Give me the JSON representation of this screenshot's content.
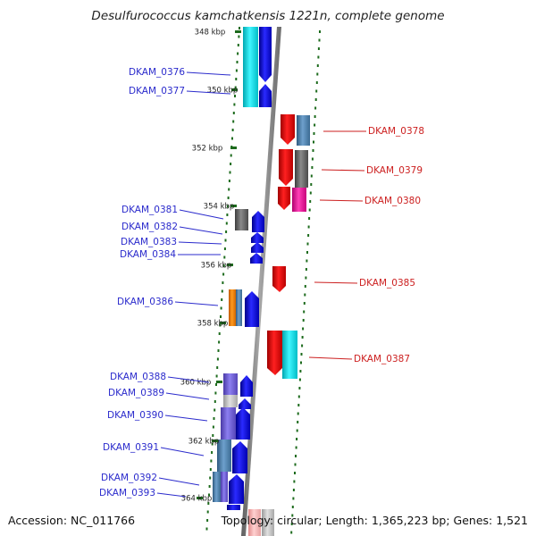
{
  "title": "Desulfurococcus kamchatkensis 1221n, complete genome",
  "footer": {
    "accession": "Accession: NC_011766",
    "topology": "Topology: circular; Length: 1,365,223 bp; Genes: 1,521"
  },
  "colors": {
    "backbone": "#8c8c8c",
    "tick": "#1d6b1d",
    "left_label": "#2b2bcc",
    "right_label": "#cc1f1f"
  },
  "kbp_marks": [
    {
      "label": "348 kbp"
    },
    {
      "label": "350 kbp"
    },
    {
      "label": "352 kbp"
    },
    {
      "label": "354 kbp"
    },
    {
      "label": "356 kbp"
    },
    {
      "label": "358 kbp"
    },
    {
      "label": "360 kbp"
    },
    {
      "label": "362 kbp"
    },
    {
      "label": "364 kbp"
    }
  ],
  "left_genes": [
    {
      "label": "DKAM_0376"
    },
    {
      "label": "DKAM_0377"
    },
    {
      "label": "DKAM_0381"
    },
    {
      "label": "DKAM_0382"
    },
    {
      "label": "DKAM_0383"
    },
    {
      "label": "DKAM_0384"
    },
    {
      "label": "DKAM_0386"
    },
    {
      "label": "DKAM_0388"
    },
    {
      "label": "DKAM_0389"
    },
    {
      "label": "DKAM_0390"
    },
    {
      "label": "DKAM_0391"
    },
    {
      "label": "DKAM_0392"
    },
    {
      "label": "DKAM_0393"
    }
  ],
  "right_genes": [
    {
      "label": "DKAM_0378"
    },
    {
      "label": "DKAM_0379"
    },
    {
      "label": "DKAM_0380"
    },
    {
      "label": "DKAM_0385"
    },
    {
      "label": "DKAM_0387"
    }
  ]
}
